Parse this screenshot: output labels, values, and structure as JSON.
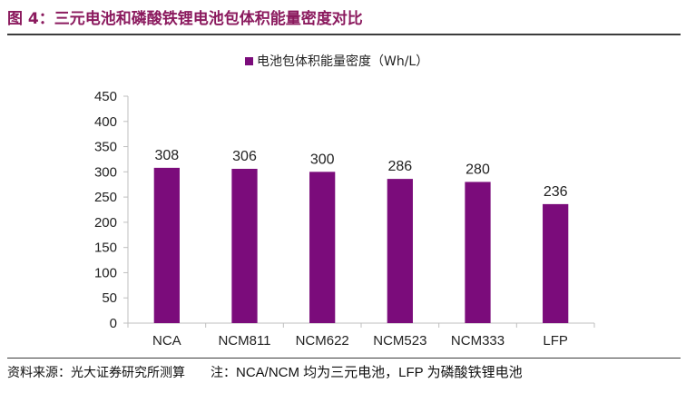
{
  "figure": {
    "title": "图 4：三元电池和磷酸铁锂电池包体积能量密度对比",
    "source": "资料来源：光大证券研究所测算",
    "note_prefix": "注：",
    "note_text": "NCA/NCM 均为三元电池，LFP 为磷酸铁锂电池"
  },
  "colors": {
    "bar": "#7b0c7b",
    "title": "#8b1a5e",
    "axis": "#bfbfbf"
  },
  "chart_data": {
    "type": "bar",
    "title": "",
    "legend": "电池包体积能量密度（Wh/L）",
    "legend_position": "top-center",
    "categories": [
      "NCA",
      "NCM811",
      "NCM622",
      "NCM523",
      "NCM333",
      "LFP"
    ],
    "values": [
      308,
      306,
      300,
      286,
      280,
      236
    ],
    "data_labels": [
      "308",
      "306",
      "300",
      "286",
      "280",
      "236"
    ],
    "ylim": [
      0,
      450
    ],
    "yticks": [
      0,
      50,
      100,
      150,
      200,
      250,
      300,
      350,
      400,
      450
    ],
    "ytick_labels": [
      "0",
      "50",
      "100",
      "150",
      "200",
      "250",
      "300",
      "350",
      "400",
      "450"
    ],
    "xlabel": "",
    "ylabel": "",
    "grid": false
  }
}
